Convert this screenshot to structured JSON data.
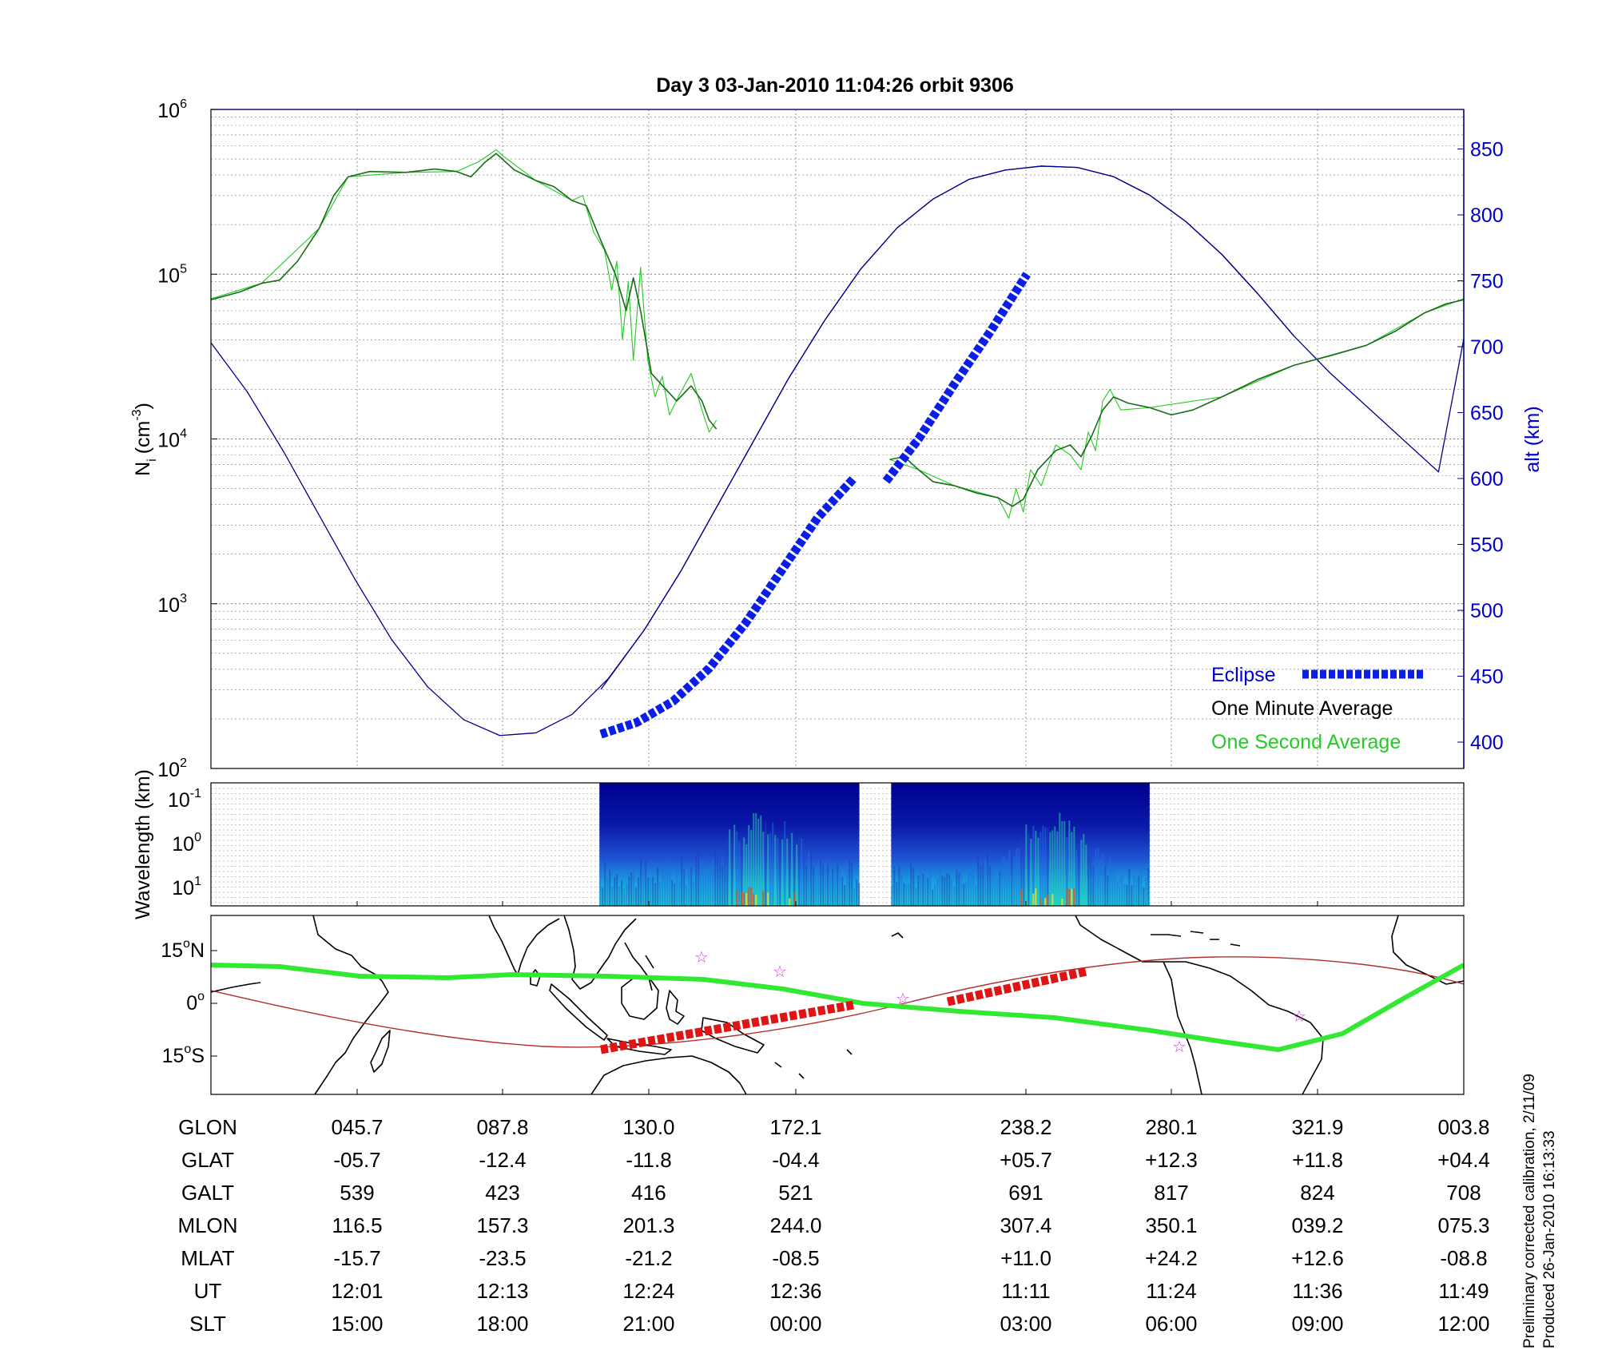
{
  "title": "Day 3  03-Jan-2010 11:04:26   orbit 9306",
  "footer": {
    "line1": "Preliminary corrected calibration, 2/11/09",
    "line2": "Produced 26-Jan-2010 16:13:33"
  },
  "colors": {
    "one_minute": "#1a6b1a",
    "one_second": "#22cc22",
    "altitude": "#00008b",
    "eclipse": "#0a1ee6",
    "eclipse_track": "#e01414",
    "ground_track": "#33e833",
    "magnetic_equator": "#b03030",
    "star": "#d040d0"
  },
  "chart_data": [
    {
      "type": "line",
      "name": "ion-density-panel",
      "ylabel": "N_i (cm^-3)",
      "ylabel_main": "N",
      "ylabel_sub": "i",
      "ylabel_unit": "(cm",
      "ylabel_exp": "-3",
      "ylabel_close": ")",
      "yscale": "log",
      "ylim": [
        100,
        1000000
      ],
      "ytick_base": "10",
      "ytick_exponents": [
        "2",
        "3",
        "4",
        "5",
        "6"
      ],
      "y2label": "alt (km)",
      "y2lim": [
        380,
        880
      ],
      "y2ticks": [
        "400",
        "450",
        "500",
        "550",
        "600",
        "650",
        "700",
        "750",
        "800",
        "850"
      ],
      "legend_position": "lower-right",
      "legend": [
        {
          "label": "Eclipse",
          "key": "eclipse"
        },
        {
          "label": "One Minute Average",
          "key": "one_minute"
        },
        {
          "label": "One Second Average",
          "key": "one_second"
        }
      ],
      "series": [
        {
          "key": "one_minute",
          "segments": [
            [
              [
                0,
                70000
              ],
              [
                0.4,
                78000
              ],
              [
                0.7,
                88000
              ],
              [
                0.95,
                92000
              ],
              [
                1.2,
                120000
              ],
              [
                1.5,
                190000
              ],
              [
                1.7,
                300000
              ],
              [
                1.9,
                390000
              ],
              [
                2.2,
                420000
              ],
              [
                2.7,
                415000
              ],
              [
                3.1,
                435000
              ],
              [
                3.4,
                420000
              ],
              [
                3.6,
                390000
              ],
              [
                3.8,
                480000
              ],
              [
                3.95,
                540000
              ],
              [
                4.2,
                430000
              ],
              [
                4.5,
                370000
              ],
              [
                4.75,
                340000
              ],
              [
                5.0,
                280000
              ],
              [
                5.2,
                260000
              ],
              [
                5.4,
                160000
              ],
              [
                5.6,
                100000
              ],
              [
                5.75,
                60000
              ],
              [
                5.85,
                95000
              ],
              [
                5.95,
                60000
              ],
              [
                6.1,
                25000
              ],
              [
                6.3,
                20000
              ],
              [
                6.45,
                17000
              ],
              [
                6.65,
                21000
              ],
              [
                6.8,
                17000
              ],
              [
                6.9,
                13000
              ],
              [
                7.0,
                11500
              ]
            ],
            [
              [
                9.4,
                7500
              ],
              [
                9.6,
                7800
              ],
              [
                9.8,
                6500
              ],
              [
                10.0,
                5500
              ],
              [
                10.3,
                5200
              ],
              [
                10.6,
                4700
              ],
              [
                10.9,
                4400
              ],
              [
                11.1,
                3900
              ],
              [
                11.25,
                4300
              ],
              [
                11.45,
                6500
              ],
              [
                11.7,
                8500
              ],
              [
                11.9,
                9200
              ],
              [
                12.05,
                7800
              ],
              [
                12.2,
                10500
              ],
              [
                12.35,
                15000
              ],
              [
                12.5,
                18000
              ],
              [
                12.7,
                16500
              ],
              [
                13.0,
                15500
              ],
              [
                13.3,
                14000
              ],
              [
                13.6,
                15000
              ],
              [
                14.0,
                18000
              ],
              [
                14.5,
                23000
              ],
              [
                15.0,
                28000
              ],
              [
                15.5,
                32000
              ],
              [
                16.0,
                37000
              ],
              [
                16.4,
                45000
              ],
              [
                16.8,
                58000
              ],
              [
                17.1,
                66000
              ],
              [
                17.35,
                70000
              ]
            ]
          ]
        },
        {
          "key": "one_second",
          "segments": [
            [
              [
                0,
                71000
              ],
              [
                0.7,
                88000
              ],
              [
                1.5,
                190000
              ],
              [
                1.9,
                390000
              ],
              [
                2.7,
                415000
              ],
              [
                3.4,
                420000
              ],
              [
                3.7,
                480000
              ],
              [
                3.85,
                530000
              ],
              [
                3.95,
                570000
              ],
              [
                4.05,
                520000
              ],
              [
                4.5,
                370000
              ],
              [
                5.0,
                280000
              ],
              [
                5.15,
                300000
              ],
              [
                5.3,
                180000
              ],
              [
                5.45,
                140000
              ],
              [
                5.55,
                80000
              ],
              [
                5.62,
                120000
              ],
              [
                5.7,
                40000
              ],
              [
                5.78,
                90000
              ],
              [
                5.85,
                30000
              ],
              [
                5.95,
                110000
              ],
              [
                6.05,
                30000
              ],
              [
                6.15,
                18000
              ],
              [
                6.25,
                24000
              ],
              [
                6.35,
                14000
              ],
              [
                6.5,
                19000
              ],
              [
                6.65,
                25000
              ],
              [
                6.8,
                15000
              ],
              [
                6.9,
                11000
              ],
              [
                7.0,
                13000
              ]
            ],
            [
              [
                9.4,
                7500
              ],
              [
                9.8,
                6500
              ],
              [
                10.3,
                5200
              ],
              [
                10.9,
                4400
              ],
              [
                11.05,
                3300
              ],
              [
                11.15,
                5000
              ],
              [
                11.25,
                3600
              ],
              [
                11.35,
                6500
              ],
              [
                11.5,
                5200
              ],
              [
                11.7,
                9200
              ],
              [
                11.9,
                8000
              ],
              [
                12.05,
                6500
              ],
              [
                12.15,
                11000
              ],
              [
                12.25,
                8500
              ],
              [
                12.35,
                17000
              ],
              [
                12.45,
                20000
              ],
              [
                12.6,
                15000
              ],
              [
                13.0,
                15500
              ],
              [
                14.0,
                18000
              ],
              [
                15.0,
                28000
              ],
              [
                16.0,
                37000
              ],
              [
                16.8,
                58000
              ],
              [
                17.35,
                71000
              ]
            ]
          ]
        },
        {
          "key": "altitude",
          "axis": "right",
          "segments": [
            [
              [
                0,
                703
              ],
              [
                0.5,
                666
              ],
              [
                1.0,
                621
              ],
              [
                1.5,
                572
              ],
              [
                2.0,
                523
              ],
              [
                2.5,
                478
              ],
              [
                3.0,
                442
              ],
              [
                3.5,
                417
              ],
              [
                4.0,
                405
              ],
              [
                4.5,
                407
              ],
              [
                5.0,
                421
              ],
              [
                5.5,
                448
              ],
              [
                6.0,
                485
              ],
              [
                6.5,
                529
              ],
              [
                7.0,
                578
              ],
              [
                7.5,
                627
              ],
              [
                8.0,
                676
              ],
              [
                8.5,
                720
              ],
              [
                9.0,
                759
              ],
              [
                9.5,
                790
              ],
              [
                10.0,
                812
              ],
              [
                10.5,
                827
              ],
              [
                11.0,
                834
              ],
              [
                11.5,
                837
              ],
              [
                12.0,
                836
              ],
              [
                12.5,
                829
              ],
              [
                13.0,
                815
              ],
              [
                13.5,
                795
              ],
              [
                14.0,
                770
              ],
              [
                14.5,
                740
              ],
              [
                15.0,
                708
              ]
            ],
            [
              [
                5.4,
                440
              ],
              [
                6.0,
                485
              ],
              [
                6.5,
                529
              ],
              [
                7.0,
                578
              ],
              [
                7.5,
                627
              ],
              [
                8.0,
                676
              ],
              [
                8.5,
                720
              ],
              [
                9.0,
                759
              ],
              [
                9.5,
                790
              ],
              [
                10.0,
                812
              ],
              [
                10.5,
                827
              ],
              [
                11.0,
                834
              ],
              [
                11.5,
                837
              ],
              [
                12.0,
                836
              ],
              [
                12.5,
                829
              ],
              [
                13.0,
                815
              ],
              [
                13.5,
                795
              ],
              [
                14.0,
                770
              ],
              [
                14.5,
                740
              ],
              [
                15.0,
                708
              ],
              [
                15.5,
                680
              ],
              [
                16.0,
                655
              ],
              [
                16.5,
                630
              ],
              [
                17.0,
                605
              ],
              [
                17.35,
                706
              ]
            ]
          ]
        }
      ],
      "eclipse_segments": [
        [
          [
            5.4,
            406
          ],
          [
            5.9,
            415
          ],
          [
            6.4,
            431
          ],
          [
            6.9,
            456
          ],
          [
            7.4,
            490
          ],
          [
            7.9,
            530
          ],
          [
            8.4,
            570
          ],
          [
            8.9,
            600
          ]
        ],
        [
          [
            9.35,
            598
          ],
          [
            9.8,
            630
          ],
          [
            10.3,
            672
          ],
          [
            10.8,
            712
          ],
          [
            11.3,
            755
          ]
        ]
      ]
    },
    {
      "type": "heatmap",
      "name": "wavelength-spectrogram",
      "ylabel": "Wavelength (km)",
      "yscale": "log",
      "ytick_base": "10",
      "ytick_exponents": [
        "-1",
        "0",
        "1"
      ],
      "active_intervals": [
        [
          5.38,
          8.98
        ],
        [
          9.42,
          13.0
        ]
      ]
    },
    {
      "type": "map",
      "name": "ground-track-map",
      "yticks": [
        {
          "deg": "15",
          "hemi": "N"
        },
        {
          "deg": "0",
          "hemi": ""
        },
        {
          "deg": "15",
          "hemi": "S"
        }
      ]
    }
  ],
  "table": {
    "row_labels": [
      "GLON",
      "GLAT",
      "GALT",
      "MLON",
      "MLAT",
      "UT",
      "SLT"
    ],
    "columns": [
      [
        "045.7",
        "-05.7",
        "539",
        "116.5",
        "-15.7",
        "12:01",
        "15:00"
      ],
      [
        "087.8",
        "-12.4",
        "423",
        "157.3",
        "-23.5",
        "12:13",
        "18:00"
      ],
      [
        "130.0",
        "-11.8",
        "416",
        "201.3",
        "-21.2",
        "12:24",
        "21:00"
      ],
      [
        "172.1",
        "-04.4",
        "521",
        "244.0",
        "-08.5",
        "12:36",
        "00:00"
      ],
      [
        "238.2",
        "+05.7",
        "691",
        "307.4",
        "+11.0",
        "11:11",
        "03:00"
      ],
      [
        "280.1",
        "+12.3",
        "817",
        "350.1",
        "+24.2",
        "11:24",
        "06:00"
      ],
      [
        "321.9",
        "+11.8",
        "824",
        "039.2",
        "+12.6",
        "11:36",
        "09:00"
      ],
      [
        "003.8",
        "+04.4",
        "708",
        "075.3",
        "-08.8",
        "11:49",
        "12:00"
      ]
    ]
  }
}
